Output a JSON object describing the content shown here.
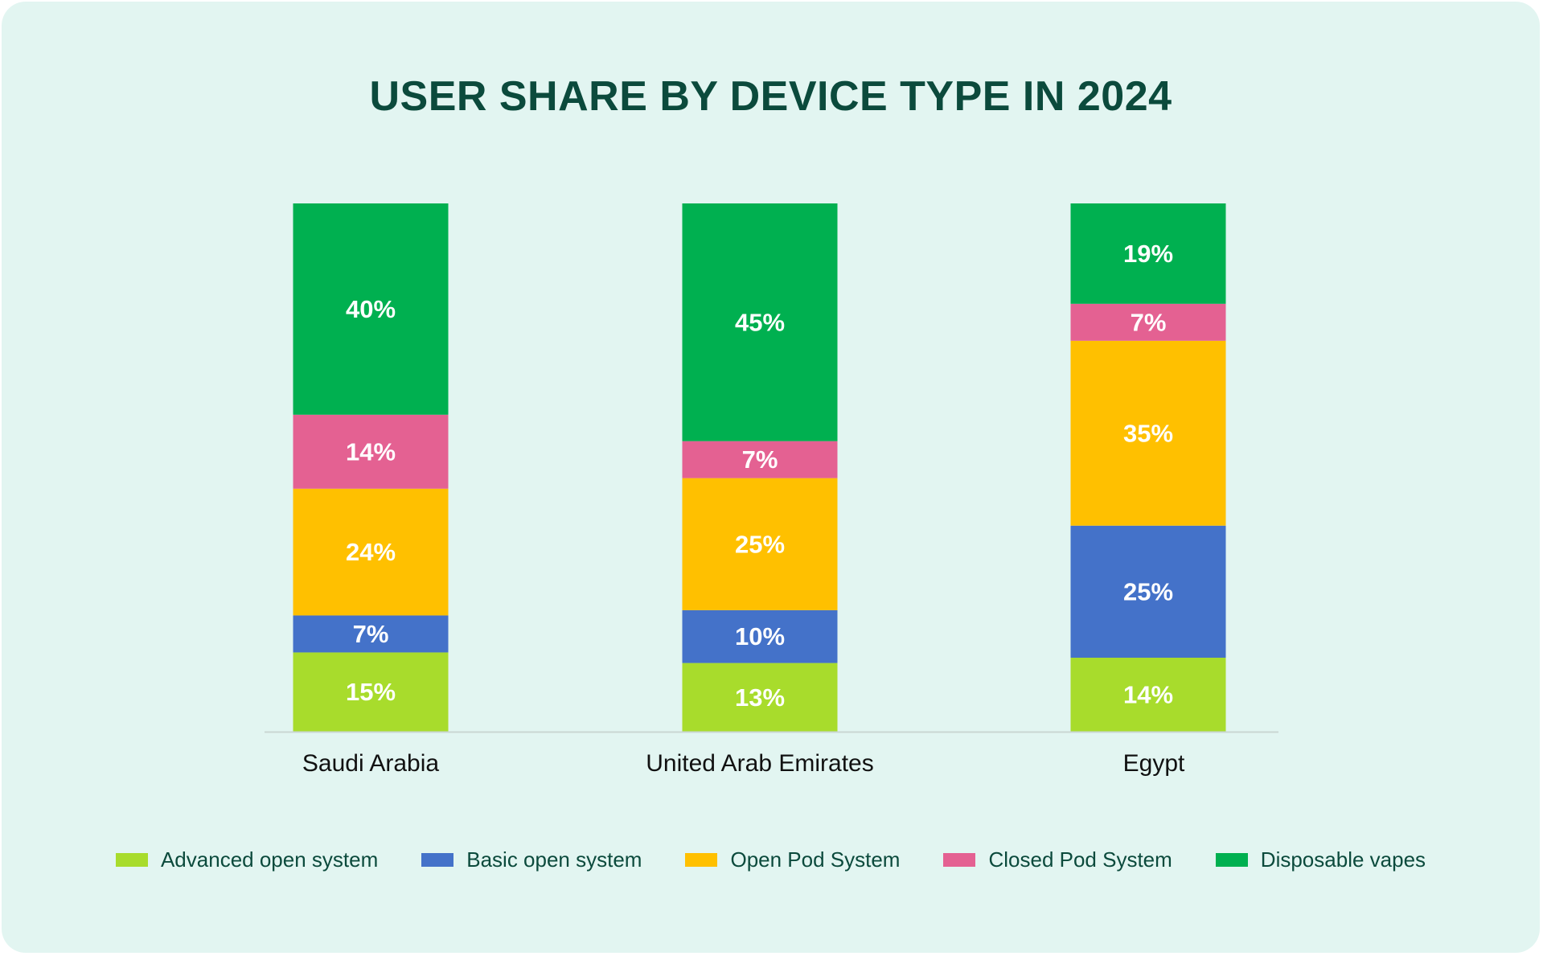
{
  "chart_data": {
    "type": "bar",
    "stacked": true,
    "title": "USER SHARE BY DEVICE TYPE IN 2024",
    "categories": [
      "Saudi Arabia",
      "United Arab Emirates",
      "Egypt"
    ],
    "series": [
      {
        "name": "Advanced open system",
        "color": "#a8dc2c",
        "values": [
          15,
          13,
          14
        ],
        "labels": [
          "15%",
          "13%",
          "14%"
        ]
      },
      {
        "name": "Basic open system",
        "color": "#4472c9",
        "values": [
          7,
          10,
          25
        ],
        "labels": [
          "7%",
          "10%",
          "25%"
        ]
      },
      {
        "name": "Open Pod System",
        "color": "#ffc000",
        "values": [
          24,
          25,
          35
        ],
        "labels": [
          "24%",
          "25%",
          "35%"
        ]
      },
      {
        "name": "Closed Pod System",
        "color": "#e46192",
        "values": [
          14,
          7,
          7
        ],
        "labels": [
          "14%",
          "7%",
          "7%"
        ]
      },
      {
        "name": "Disposable vapes",
        "color": "#00b050",
        "values": [
          40,
          45,
          19
        ],
        "labels": [
          "40%",
          "45%",
          "19%"
        ]
      }
    ],
    "ylim": [
      0,
      100
    ],
    "grid": false,
    "legend": "bottom"
  }
}
